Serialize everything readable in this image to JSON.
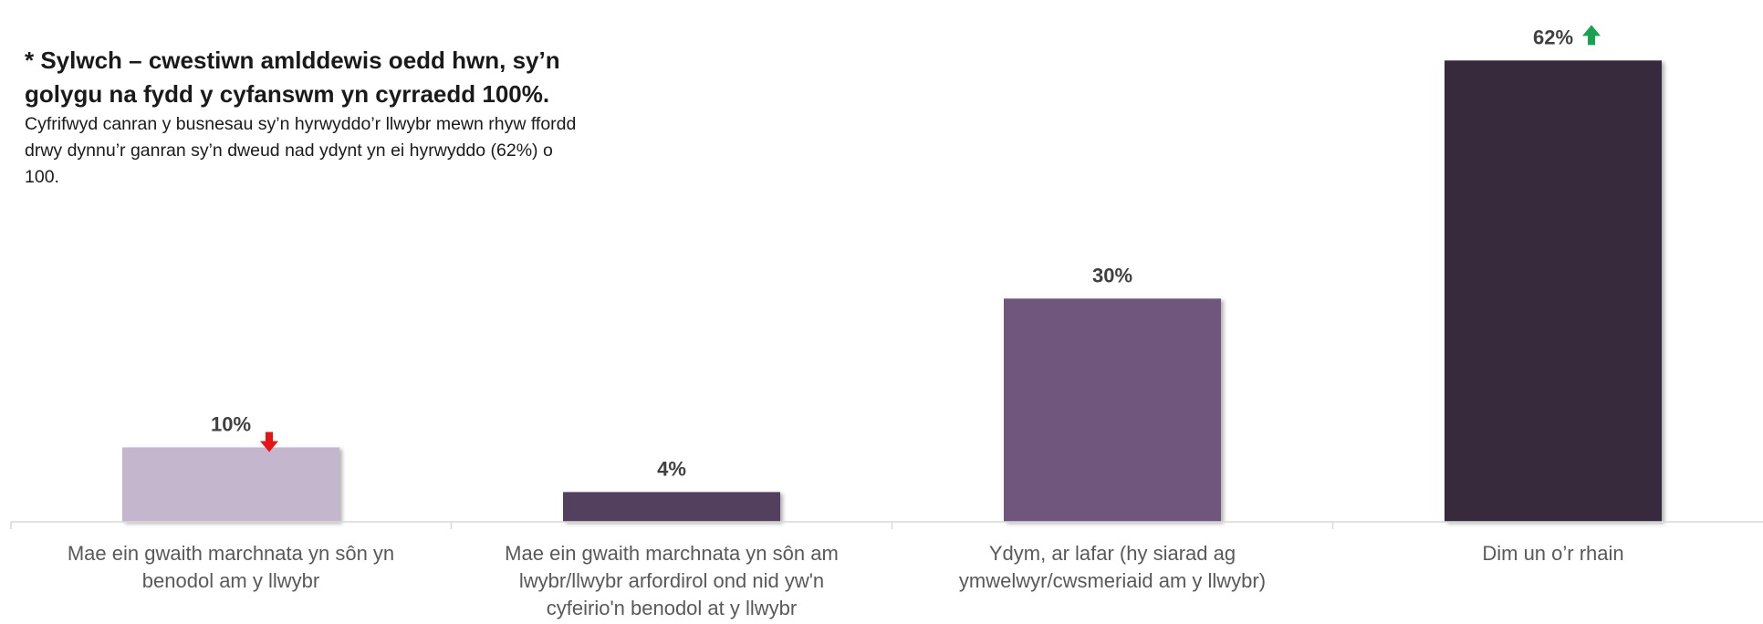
{
  "note": {
    "title": "* Sylwch – cwestiwn amlddewis oedd hwn, sy’n golygu na fydd y cyfanswm yn cyrraedd 100%.",
    "body": "Cyfrifwyd canran y busnesau sy’n hyrwyddo’r llwybr mewn rhyw ffordd drwy dynnu’r ganran sy’n dweud nad ydynt yn ei hyrwyddo (62%) o 100."
  },
  "chart_data": {
    "type": "bar",
    "categories": [
      "Mae ein gwaith marchnata yn sôn yn benodol am y llwybr",
      "Mae ein gwaith marchnata yn sôn am lwybr/llwybr arfordirol ond nid yw'n cyfeirio'n benodol at y llwybr",
      "Ydym, ar lafar (hy siarad ag ymwelwyr/cwsmeriaid am y llwybr)",
      "Dim un o’r rhain"
    ],
    "values": [
      10,
      4,
      30,
      62
    ],
    "data_labels": [
      "10%",
      "4%",
      "30%",
      "62%"
    ],
    "bar_colors": [
      "#c4b6cc",
      "#53405f",
      "#70577d",
      "#372a3e"
    ],
    "indicators": [
      {
        "index": 0,
        "direction": "down",
        "color": "#e61414",
        "icon": "arrow-down-icon"
      },
      {
        "index": 3,
        "direction": "up",
        "color": "#1aa250",
        "icon": "arrow-up-icon"
      }
    ],
    "ylim": [
      0,
      64
    ],
    "title": "",
    "xlabel": "",
    "ylabel": "",
    "grid": false,
    "legend": false,
    "label_color": "#404040",
    "axis_color": "#d9d9d9"
  }
}
